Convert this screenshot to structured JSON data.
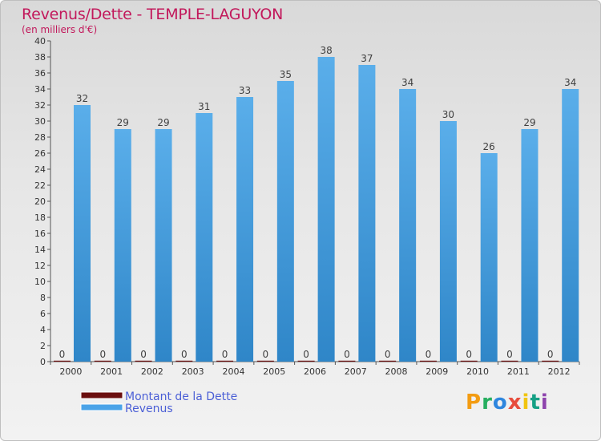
{
  "title": "Revenus/Dette - TEMPLE-LAGUYON",
  "subtitle": "(en milliers d'€)",
  "logo_text": "Proxiti",
  "colors": {
    "title": "#c2185b",
    "revenus": "#4aa3e8",
    "dette": "#6b0f0f",
    "legend_text": "#4b5fd6"
  },
  "chart_data": {
    "type": "bar",
    "title": "Revenus/Dette - TEMPLE-LAGUYON",
    "subtitle": "(en milliers d'€)",
    "categories": [
      "2000",
      "2001",
      "2002",
      "2003",
      "2004",
      "2005",
      "2006",
      "2007",
      "2008",
      "2009",
      "2010",
      "2011",
      "2012"
    ],
    "series": [
      {
        "name": "Montant de la Dette",
        "color": "#6b0f0f",
        "values": [
          0,
          0,
          0,
          0,
          0,
          0,
          0,
          0,
          0,
          0,
          0,
          0,
          0
        ]
      },
      {
        "name": "Revenus",
        "color": "#4aa3e8",
        "values": [
          32,
          29,
          29,
          31,
          33,
          35,
          38,
          37,
          34,
          30,
          26,
          29,
          34
        ]
      }
    ],
    "ylim": [
      0,
      40
    ],
    "yticks": [
      0,
      2,
      4,
      6,
      8,
      10,
      12,
      14,
      16,
      18,
      20,
      22,
      24,
      26,
      28,
      30,
      32,
      34,
      36,
      38,
      40
    ],
    "grid": false,
    "legend_position": "bottom-left"
  }
}
